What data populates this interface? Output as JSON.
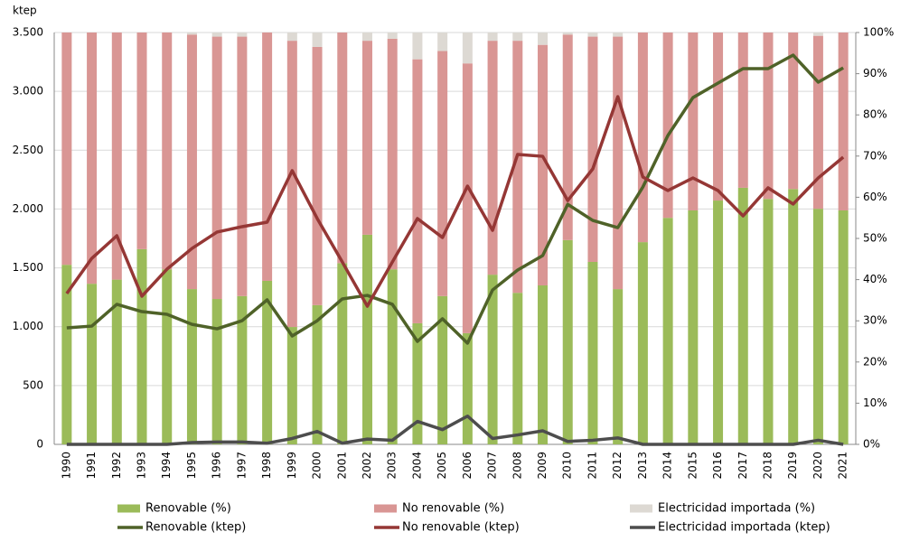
{
  "chart_data": {
    "type": "bar",
    "stacked": true,
    "ylabel": "ktep",
    "categories": [
      "1990",
      "1991",
      "1992",
      "1993",
      "1994",
      "1995",
      "1996",
      "1997",
      "1998",
      "1999",
      "2000",
      "2001",
      "2002",
      "2003",
      "2004",
      "2005",
      "2006",
      "2007",
      "2008",
      "2009",
      "2010",
      "2011",
      "2012",
      "2013",
      "2014",
      "2015",
      "2016",
      "2017",
      "2018",
      "2019",
      "2020",
      "2021"
    ],
    "ylim": [
      0,
      3500
    ],
    "yticks": [
      0,
      500,
      {
        "value": 1000,
        "label": "1.000"
      },
      {
        "value": 1500,
        "label": "1.500"
      },
      {
        "value": 2000,
        "label": "2.000"
      },
      {
        "value": 2500,
        "label": "2.500"
      },
      {
        "value": 3000,
        "label": "3.000"
      },
      {
        "value": 3500,
        "label": "3.500"
      }
    ],
    "y2lim": [
      0,
      100
    ],
    "y2ticks": [
      {
        "value": 0,
        "label": "0%"
      },
      {
        "value": 10,
        "label": "10%"
      },
      {
        "value": 20,
        "label": "20%"
      },
      {
        "value": 30,
        "label": "30%"
      },
      {
        "value": 40,
        "label": "40%"
      },
      {
        "value": 50,
        "label": "50%"
      },
      {
        "value": 60,
        "label": "60%"
      },
      {
        "value": 70,
        "label": "70%"
      },
      {
        "value": 80,
        "label": "80%"
      },
      {
        "value": 90,
        "label": "90%"
      },
      {
        "value": 100,
        "label": "100%"
      }
    ],
    "grid": true,
    "legend": "bottom",
    "series": [
      {
        "name": "Renovable (%)",
        "type": "bar",
        "axis": "y2",
        "color": "#9bbb59",
        "values": [
          43.6,
          39,
          40,
          47.4,
          42.5,
          37.7,
          35.3,
          36,
          39.7,
          28.5,
          33.8,
          44,
          50.9,
          42.5,
          29.4,
          36,
          27,
          41.2,
          36.8,
          38.6,
          49.6,
          44.3,
          37.7,
          49.1,
          55,
          56.8,
          59.2,
          62.3,
          59.6,
          62,
          57.2,
          56.8
        ]
      },
      {
        "name": "No renovable (%)",
        "type": "bar",
        "axis": "y2",
        "color": "#d99694",
        "values": [
          56.4,
          61,
          60,
          52.6,
          57.5,
          61.8,
          63.7,
          63,
          60.3,
          69.5,
          62.7,
          56,
          47.1,
          56,
          64.1,
          59.5,
          65.5,
          56.8,
          61.2,
          58.4,
          49.9,
          54.7,
          61.3,
          50.9,
          45,
          43.2,
          40.8,
          37.7,
          40.4,
          38,
          42,
          43.2
        ]
      },
      {
        "name": "Electricidad importada (%)",
        "type": "bar",
        "axis": "y2",
        "color": "#ddd9d3",
        "values": [
          0,
          0,
          0,
          0,
          0,
          0.5,
          1,
          1,
          0,
          2,
          3.5,
          0,
          2,
          1.5,
          6.5,
          4.5,
          7.5,
          2,
          2,
          3,
          0.5,
          1,
          1,
          0,
          0,
          0,
          0,
          0,
          0,
          0,
          0.8,
          0
        ]
      },
      {
        "name": "Renovable (ktep)",
        "type": "line",
        "color": "#4f6228",
        "values": [
          990,
          1005,
          1190,
          1128,
          1105,
          1020,
          982,
          1051,
          1228,
          921,
          1051,
          1236,
          1266,
          1190,
          875,
          1067,
          860,
          1312,
          1481,
          1604,
          2040,
          1903,
          1842,
          2187,
          2625,
          2947,
          3070,
          3193,
          3193,
          3308,
          3078,
          3200
        ]
      },
      {
        "name": "No renovable (ktep)",
        "type": "line",
        "color": "#953735",
        "values": [
          1282,
          1581,
          1773,
          1259,
          1489,
          1665,
          1804,
          1850,
          1888,
          2326,
          1919,
          1550,
          1174,
          1550,
          1919,
          1758,
          2195,
          1819,
          2464,
          2448,
          2072,
          2341,
          2955,
          2272,
          2157,
          2264,
          2157,
          1942,
          2180,
          2042,
          2264,
          2441
        ]
      },
      {
        "name": "Electricidad importada (ktep)",
        "type": "line",
        "color": "#4d4d4d",
        "values": [
          0,
          0,
          0,
          0,
          0,
          15,
          20,
          20,
          10,
          50,
          110,
          10,
          45,
          35,
          195,
          125,
          240,
          50,
          80,
          115,
          25,
          35,
          55,
          0,
          0,
          0,
          0,
          0,
          0,
          0,
          35,
          0
        ]
      }
    ]
  }
}
